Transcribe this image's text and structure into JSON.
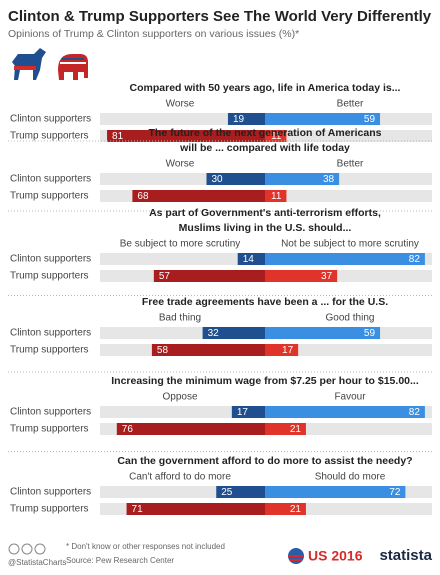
{
  "title": "Clinton & Trump Supporters See The World Very Differently",
  "subtitle": "Opinions of Trump & Clinton supporters on various issues (%)*",
  "footnote": "* Don't know or other responses not included",
  "source": "Source: Pew Research Center",
  "handle": "@StatistaCharts",
  "badge": "US 2016",
  "brand": "statista",
  "row_colors": [
    [
      "#1f4f8f",
      "#3a8fe3"
    ],
    [
      "#a81d1d",
      "#e0342a"
    ]
  ],
  "track_color": "#e6e6e6",
  "chart_data": [
    {
      "type": "bar",
      "title": [
        "Compared with 50 years ago, life in America today is..."
      ],
      "categories": [
        "Clinton supporters",
        "Trump supporters"
      ],
      "series": [
        {
          "name": "Worse",
          "values": [
            19,
            81
          ]
        },
        {
          "name": "Better",
          "values": [
            59,
            11
          ]
        }
      ]
    },
    {
      "type": "bar",
      "title": [
        "The future of the next generation of Americans",
        "will be ... compared with life today"
      ],
      "categories": [
        "Clinton supporters",
        "Trump supporters"
      ],
      "series": [
        {
          "name": "Worse",
          "values": [
            30,
            68
          ]
        },
        {
          "name": "Better",
          "values": [
            38,
            11
          ]
        }
      ]
    },
    {
      "type": "bar",
      "title": [
        "As part of Government's anti-terrorism efforts,",
        "Muslims living in the U.S. should..."
      ],
      "categories": [
        "Clinton supporters",
        "Trump supporters"
      ],
      "series": [
        {
          "name": "Be subject to more scrutiny",
          "values": [
            14,
            57
          ]
        },
        {
          "name": "Not be subject to more scrutiny",
          "values": [
            82,
            37
          ]
        }
      ]
    },
    {
      "type": "bar",
      "title": [
        "Free trade agreements have been a ... for the U.S."
      ],
      "categories": [
        "Clinton supporters",
        "Trump supporters"
      ],
      "series": [
        {
          "name": "Bad thing",
          "values": [
            32,
            58
          ]
        },
        {
          "name": "Good thing",
          "values": [
            59,
            17
          ]
        }
      ]
    },
    {
      "type": "bar",
      "title": [
        "Increasing the minimum wage from $7.25 per hour to $15.00..."
      ],
      "categories": [
        "Clinton supporters",
        "Trump supporters"
      ],
      "series": [
        {
          "name": "Oppose",
          "values": [
            17,
            76
          ]
        },
        {
          "name": "Favour",
          "values": [
            82,
            21
          ]
        }
      ]
    },
    {
      "type": "bar",
      "title": [
        "Can the government afford to do more to assist the needy?"
      ],
      "categories": [
        "Clinton supporters",
        "Trump supporters"
      ],
      "series": [
        {
          "name": "Can't afford to do more",
          "values": [
            25,
            71
          ]
        },
        {
          "name": "Should do more",
          "values": [
            72,
            21
          ]
        }
      ]
    }
  ]
}
